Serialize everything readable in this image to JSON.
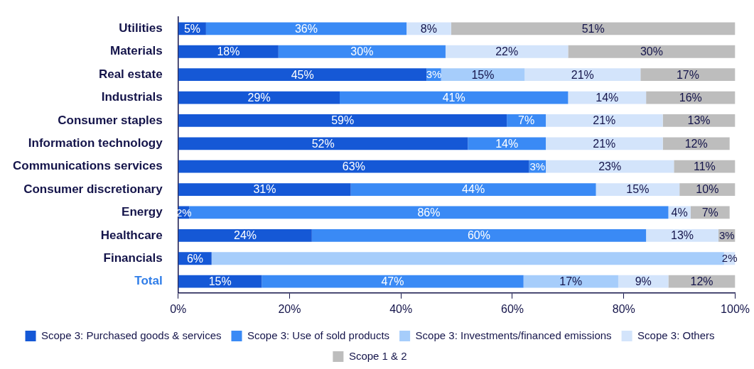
{
  "chart_data": {
    "type": "bar",
    "orientation": "horizontal",
    "stacked": true,
    "categories": [
      "Utilities",
      "Materials",
      "Real estate",
      "Industrials",
      "Consumer staples",
      "Information technology",
      "Communications services",
      "Consumer discretionary",
      "Energy",
      "Healthcare",
      "Financials",
      "Total"
    ],
    "series": [
      {
        "name": "Scope 3: Purchased goods & services",
        "color": "#1558d6",
        "values": [
          5,
          18,
          44.6,
          29,
          59,
          52,
          63,
          31,
          2,
          24,
          6,
          15
        ],
        "value_labels": [
          "5%",
          "18%",
          "45%",
          "29%",
          "59%",
          "52%",
          "63%",
          "31%",
          "2%",
          "24%",
          "6%",
          "15%"
        ]
      },
      {
        "name": "Scope 3: Use of sold products",
        "color": "#3a8af5",
        "values": [
          36,
          30,
          2.6,
          41,
          7,
          14,
          3,
          44,
          86,
          60,
          0,
          47
        ],
        "value_labels": [
          "36%",
          "30%",
          "3%",
          "41%",
          "7%",
          "14%",
          "3%",
          "44%",
          "86%",
          "60%",
          null,
          "47%"
        ]
      },
      {
        "name": "Scope 3: Investments/financed emissions",
        "color": "#a6cdfb",
        "values": [
          0,
          0,
          15,
          0,
          0,
          0,
          0,
          0,
          0,
          0,
          92,
          17
        ],
        "value_labels": [
          null,
          null,
          "15%",
          null,
          null,
          null,
          null,
          null,
          null,
          null,
          null,
          "17%"
        ]
      },
      {
        "name": "Scope 3: Others",
        "color": "#d3e4fb",
        "values": [
          8,
          22,
          20.8,
          14,
          21,
          21,
          23,
          15,
          4,
          13,
          2,
          9
        ],
        "value_labels": [
          "8%",
          "22%",
          "21%",
          "14%",
          "21%",
          "21%",
          "23%",
          "15%",
          "4%",
          "13%",
          "2%",
          "9%"
        ]
      },
      {
        "name": "Scope 1 & 2",
        "color": "#bdbdbd",
        "values": [
          51,
          30,
          17,
          16,
          13,
          12,
          11,
          10,
          7,
          3,
          0,
          12
        ],
        "value_labels": [
          "51%",
          "30%",
          "17%",
          "16%",
          "13%",
          "12%",
          "11%",
          "10%",
          "7%",
          "3%",
          null,
          "12%"
        ]
      }
    ],
    "xlim": [
      0,
      100
    ],
    "xticks": [
      {
        "value": 0,
        "label": "0%"
      },
      {
        "value": 20,
        "label": "20%"
      },
      {
        "value": 40,
        "label": "40%"
      },
      {
        "value": 60,
        "label": "60%"
      },
      {
        "value": 80,
        "label": "80%"
      },
      {
        "value": 100,
        "label": "100%"
      }
    ],
    "grid": false,
    "legend": "bottom"
  }
}
